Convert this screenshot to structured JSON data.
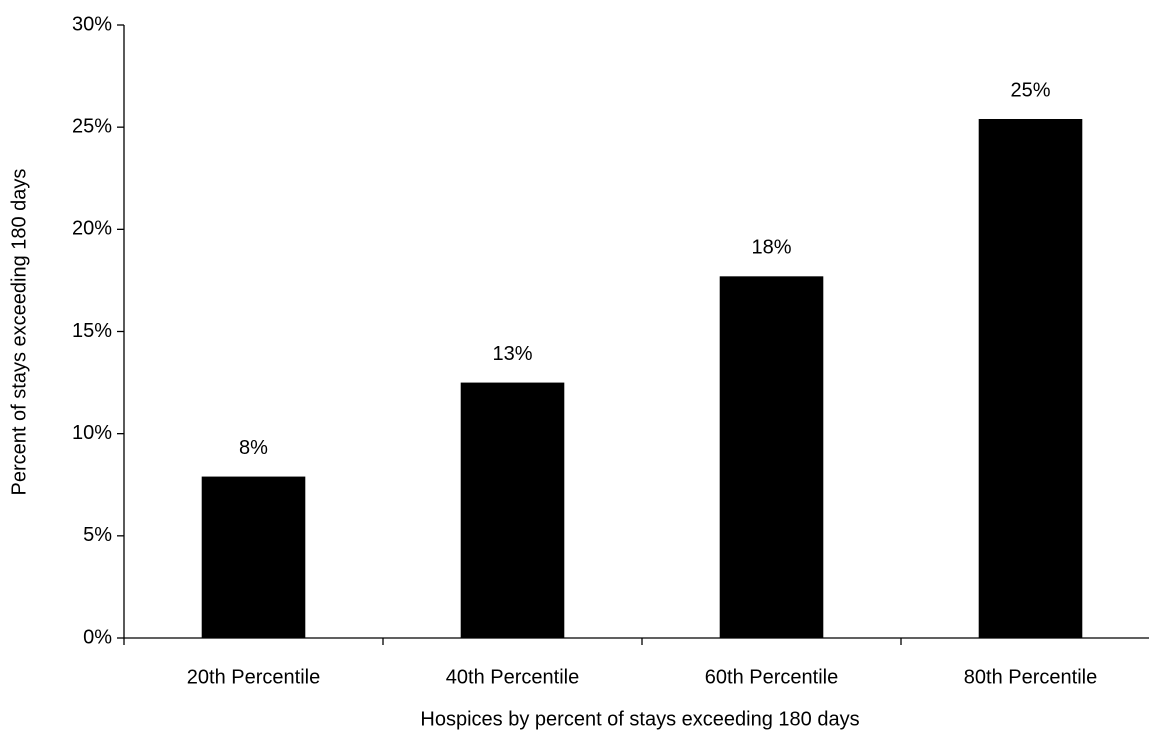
{
  "chart_data": {
    "type": "bar",
    "x_label": "Hospices by percent of stays exceeding 180 days",
    "y_label": "Percent of stays exceeding 180 days",
    "categories": [
      "20th Percentile",
      "40th Percentile",
      "60th Percentile",
      "80th Percentile"
    ],
    "values": [
      7.9,
      12.5,
      17.7,
      25.4
    ],
    "value_labels": [
      "8%",
      "13%",
      "18%",
      "25%"
    ],
    "color": "#000000",
    "ylim": [
      0,
      30
    ],
    "yticks": [
      {
        "value": 0,
        "label": "0%"
      },
      {
        "value": 5,
        "label": "5%"
      },
      {
        "value": 10,
        "label": "10%"
      },
      {
        "value": 15,
        "label": "15%"
      },
      {
        "value": 20,
        "label": "20%"
      },
      {
        "value": 25,
        "label": "25%"
      },
      {
        "value": 30,
        "label": "30%"
      }
    ],
    "grid": false
  }
}
